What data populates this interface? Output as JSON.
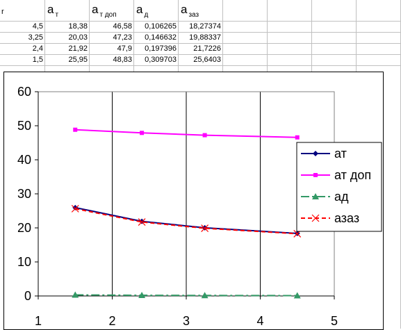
{
  "sheet": {
    "header": {
      "col_a": "r",
      "col_b": {
        "main": "a",
        "sub": "т"
      },
      "col_c": {
        "main": "a",
        "sub": "т доп"
      },
      "col_d": {
        "main": "a",
        "sub": "д"
      },
      "col_e": {
        "main": "a",
        "sub": "заз"
      }
    },
    "rows": [
      {
        "r": "4,5",
        "at": "18,38",
        "atdop": "46,58",
        "ad": "0,106265",
        "azaz": "18,27374"
      },
      {
        "r": "3,25",
        "at": "20,03",
        "atdop": "47,23",
        "ad": "0,146632",
        "azaz": "19,88337"
      },
      {
        "r": "2,4",
        "at": "21,92",
        "atdop": "47,9",
        "ad": "0,197396",
        "azaz": "21,7226"
      },
      {
        "r": "1,5",
        "at": "25,95",
        "atdop": "48,83",
        "ad": "0,309703",
        "azaz": "25,6403"
      }
    ]
  },
  "chart_data": {
    "type": "line",
    "x": [
      4.5,
      3.25,
      2.4,
      1.5
    ],
    "series": [
      {
        "name": "ат",
        "values": [
          18.38,
          20.03,
          21.92,
          25.95
        ],
        "color": "#000080",
        "marker": "diamond",
        "dash": "solid"
      },
      {
        "name": "ат доп",
        "values": [
          46.58,
          47.23,
          47.9,
          48.83
        ],
        "color": "#ff00ff",
        "marker": "square",
        "dash": "solid"
      },
      {
        "name": "ад",
        "values": [
          0.106265,
          0.146632,
          0.197396,
          0.309703
        ],
        "color": "#339966",
        "marker": "triangle",
        "dash": "dashdot"
      },
      {
        "name": "азаз",
        "values": [
          18.27374,
          19.88337,
          21.7226,
          25.6403
        ],
        "color": "#ff0000",
        "marker": "x",
        "dash": "dashed"
      }
    ],
    "xlim": [
      1,
      5
    ],
    "ylim": [
      0,
      60
    ],
    "xticks": [
      1,
      2,
      3,
      4,
      5
    ],
    "yticks": [
      0,
      10,
      20,
      30,
      40,
      50,
      60
    ],
    "grid": "vertical",
    "legend": "right"
  }
}
